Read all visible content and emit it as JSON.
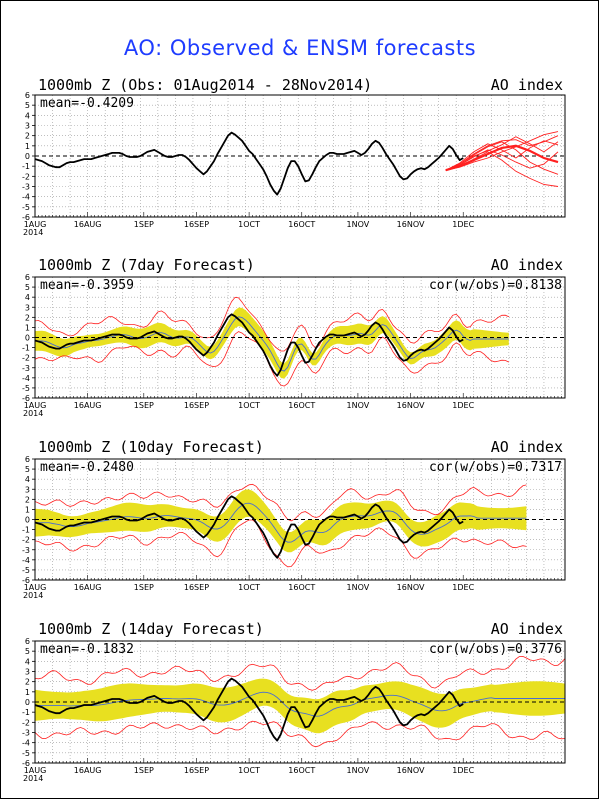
{
  "page": {
    "title": "AO: Observed & ENSM forecasts"
  },
  "colors": {
    "title": "#1e3cff",
    "observed": "#000000",
    "forecast_members": "#ff2020",
    "ensemble_spread": "#e8e020",
    "ensemble_mean": "#4a6ecf",
    "zero_line": "#000000",
    "grid": "#999999"
  },
  "chart_data": [
    {
      "type": "line",
      "title": "1000mb Z (Obs: 01Aug2014 - 28Nov2014)",
      "index_label": "AO index",
      "stat_label": "mean=-0.4209",
      "corr_label": "",
      "ylim": [
        -6,
        6
      ],
      "yticks": [
        "6",
        "5",
        "4",
        "3",
        "2",
        "1",
        "0",
        "-1",
        "-2",
        "-3",
        "-4",
        "-5",
        "-6"
      ],
      "xlabels": [
        "1AUG",
        "16AUG",
        "1SEP",
        "16SEP",
        "1OCT",
        "16OCT",
        "1NOV",
        "16NOV",
        "1DEC"
      ],
      "xlabel_year": "2014",
      "x_days_total": 151,
      "xtick_days": [
        0,
        15,
        31,
        46,
        61,
        76,
        92,
        107,
        122
      ],
      "observed": {
        "start_day": 0,
        "values": [
          -0.3,
          -0.4,
          -0.5,
          -0.7,
          -0.9,
          -1.0,
          -1.1,
          -1.1,
          -0.9,
          -0.7,
          -0.6,
          -0.6,
          -0.5,
          -0.4,
          -0.3,
          -0.3,
          -0.3,
          -0.2,
          -0.1,
          0.0,
          0.1,
          0.2,
          0.3,
          0.3,
          0.3,
          0.2,
          0.0,
          -0.1,
          -0.1,
          -0.1,
          0.0,
          0.2,
          0.4,
          0.5,
          0.6,
          0.4,
          0.2,
          0.0,
          -0.1,
          -0.1,
          0.0,
          0.1,
          0.1,
          -0.1,
          -0.4,
          -0.8,
          -1.2,
          -1.5,
          -1.8,
          -1.5,
          -1.0,
          -0.5,
          0.2,
          0.8,
          1.4,
          2.0,
          2.3,
          2.1,
          1.8,
          1.5,
          1.0,
          0.5,
          0.2,
          -0.3,
          -0.8,
          -1.3,
          -2.0,
          -2.8,
          -3.4,
          -3.8,
          -3.2,
          -2.2,
          -1.2,
          -0.5,
          -0.5,
          -1.0,
          -1.8,
          -2.5,
          -2.4,
          -1.8,
          -1.1,
          -0.5,
          -0.2,
          0.1,
          0.3,
          0.3,
          0.2,
          0.2,
          0.2,
          0.3,
          0.4,
          0.5,
          0.3,
          0.1,
          0.3,
          0.7,
          1.2,
          1.5,
          1.3,
          0.8,
          0.2,
          -0.3,
          -0.8,
          -1.4,
          -2.0,
          -2.3,
          -2.2,
          -1.8,
          -1.5,
          -1.3,
          -1.2,
          -1.3,
          -1.1,
          -0.8,
          -0.5,
          -0.2,
          0.2,
          0.6,
          1.0,
          0.7,
          0.1,
          -0.4,
          -0.2
        ]
      },
      "forecast_members": [
        {
          "start_day": 117,
          "values": [
            -1.4,
            -1.0,
            -0.4,
            0.2,
            0.8,
            1.0,
            0.5,
            -0.2,
            -0.6
          ]
        },
        {
          "start_day": 117,
          "values": [
            -1.4,
            -0.8,
            0.2,
            1.0,
            1.5,
            1.6,
            1.0,
            1.4,
            2.0
          ]
        },
        {
          "start_day": 117,
          "values": [
            -1.4,
            -0.9,
            -0.1,
            0.6,
            0.1,
            -0.6,
            -1.2,
            -0.8,
            0.4
          ]
        },
        {
          "start_day": 117,
          "values": [
            -1.4,
            -0.7,
            0.4,
            1.2,
            0.6,
            -0.2,
            0.8,
            1.5,
            1.1
          ]
        },
        {
          "start_day": 117,
          "values": [
            -1.4,
            -1.1,
            -0.6,
            -0.2,
            0.4,
            0.9,
            1.5,
            2.1,
            2.4
          ]
        },
        {
          "start_day": 117,
          "values": [
            -1.4,
            -1.0,
            -0.3,
            0.4,
            -0.4,
            -1.5,
            -2.2,
            -2.8,
            -3.0
          ]
        },
        {
          "start_day": 117,
          "values": [
            -1.4,
            -0.8,
            0.1,
            0.9,
            1.4,
            0.6,
            -0.6,
            -1.3,
            -1.8
          ]
        },
        {
          "start_day": 117,
          "values": [
            -1.4,
            -0.9,
            0.0,
            0.5,
            1.1,
            1.9,
            1.2,
            0.4,
            1.4
          ]
        }
      ],
      "ensemble": null
    },
    {
      "type": "line",
      "title": "1000mb Z (7day Forecast)",
      "index_label": "AO index",
      "stat_label": "mean=-0.3959",
      "corr_label": "cor(w/obs)=0.8138",
      "ylim": [
        -6,
        6
      ],
      "yticks": [
        "6",
        "5",
        "4",
        "3",
        "2",
        "1",
        "0",
        "-1",
        "-2",
        "-3",
        "-4",
        "-5",
        "-6"
      ],
      "xlabels": [
        "1AUG",
        "16AUG",
        "1SEP",
        "16SEP",
        "1OCT",
        "16OCT",
        "1NOV",
        "16NOV",
        "1DEC"
      ],
      "xlabel_year": "2014",
      "x_days_total": 151,
      "xtick_days": [
        0,
        15,
        31,
        46,
        61,
        76,
        92,
        107,
        122
      ],
      "observed": {
        "start_day": 0,
        "values": [
          -0.3,
          -0.4,
          -0.5,
          -0.7,
          -0.9,
          -1.0,
          -1.1,
          -1.1,
          -0.9,
          -0.7,
          -0.6,
          -0.6,
          -0.5,
          -0.4,
          -0.3,
          -0.3,
          -0.3,
          -0.2,
          -0.1,
          0.0,
          0.1,
          0.2,
          0.3,
          0.3,
          0.3,
          0.2,
          0.0,
          -0.1,
          -0.1,
          -0.1,
          0.0,
          0.2,
          0.4,
          0.5,
          0.6,
          0.4,
          0.2,
          0.0,
          -0.1,
          -0.1,
          0.0,
          0.1,
          0.1,
          -0.1,
          -0.4,
          -0.8,
          -1.2,
          -1.5,
          -1.8,
          -1.5,
          -1.0,
          -0.5,
          0.2,
          0.8,
          1.4,
          2.0,
          2.3,
          2.1,
          1.8,
          1.5,
          1.0,
          0.5,
          0.2,
          -0.3,
          -0.8,
          -1.3,
          -2.0,
          -2.8,
          -3.4,
          -3.8,
          -3.2,
          -2.2,
          -1.2,
          -0.5,
          -0.5,
          -1.0,
          -1.8,
          -2.5,
          -2.4,
          -1.8,
          -1.1,
          -0.5,
          -0.2,
          0.1,
          0.3,
          0.3,
          0.2,
          0.2,
          0.2,
          0.3,
          0.4,
          0.5,
          0.3,
          0.1,
          0.3,
          0.7,
          1.2,
          1.5,
          1.3,
          0.8,
          0.2,
          -0.3,
          -0.8,
          -1.4,
          -2.0,
          -2.3,
          -2.2,
          -1.8,
          -1.5,
          -1.3,
          -1.2,
          -1.3,
          -1.1,
          -0.8,
          -0.5,
          -0.2,
          0.2,
          0.6,
          1.0,
          0.7,
          0.1,
          -0.4,
          -0.2
        ]
      },
      "forecast_members": [],
      "ensemble": {
        "start_day": 0,
        "lag_days": 2,
        "smoothing": 1,
        "shift": 0.0,
        "spread": [
          0.6,
          1.0
        ],
        "envelope": [
          1.2,
          1.8
        ],
        "extend_to_day": 135
      }
    },
    {
      "type": "line",
      "title": "1000mb Z (10day Forecast)",
      "index_label": "AO index",
      "stat_label": "mean=-0.2480",
      "corr_label": "cor(w/obs)=0.7317",
      "ylim": [
        -6,
        6
      ],
      "yticks": [
        "6",
        "5",
        "4",
        "3",
        "2",
        "1",
        "0",
        "-1",
        "-2",
        "-3",
        "-4",
        "-5",
        "-6"
      ],
      "xlabels": [
        "1AUG",
        "16AUG",
        "1SEP",
        "16SEP",
        "1OCT",
        "16OCT",
        "1NOV",
        "16NOV",
        "1DEC"
      ],
      "xlabel_year": "2014",
      "x_days_total": 151,
      "xtick_days": [
        0,
        15,
        31,
        46,
        61,
        76,
        92,
        107,
        122
      ],
      "observed": {
        "start_day": 0,
        "values": [
          -0.3,
          -0.4,
          -0.5,
          -0.7,
          -0.9,
          -1.0,
          -1.1,
          -1.1,
          -0.9,
          -0.7,
          -0.6,
          -0.6,
          -0.5,
          -0.4,
          -0.3,
          -0.3,
          -0.3,
          -0.2,
          -0.1,
          0.0,
          0.1,
          0.2,
          0.3,
          0.3,
          0.3,
          0.2,
          0.0,
          -0.1,
          -0.1,
          -0.1,
          0.0,
          0.2,
          0.4,
          0.5,
          0.6,
          0.4,
          0.2,
          0.0,
          -0.1,
          -0.1,
          0.0,
          0.1,
          0.1,
          -0.1,
          -0.4,
          -0.8,
          -1.2,
          -1.5,
          -1.8,
          -1.5,
          -1.0,
          -0.5,
          0.2,
          0.8,
          1.4,
          2.0,
          2.3,
          2.1,
          1.8,
          1.5,
          1.0,
          0.5,
          0.2,
          -0.3,
          -0.8,
          -1.3,
          -2.0,
          -2.8,
          -3.4,
          -3.8,
          -3.2,
          -2.2,
          -1.2,
          -0.5,
          -0.5,
          -1.0,
          -1.8,
          -2.5,
          -2.4,
          -1.8,
          -1.1,
          -0.5,
          -0.2,
          0.1,
          0.3,
          0.3,
          0.2,
          0.2,
          0.2,
          0.3,
          0.4,
          0.5,
          0.3,
          0.1,
          0.3,
          0.7,
          1.2,
          1.5,
          1.3,
          0.8,
          0.2,
          -0.3,
          -0.8,
          -1.4,
          -2.0,
          -2.3,
          -2.2,
          -1.8,
          -1.5,
          -1.3,
          -1.2,
          -1.3,
          -1.1,
          -0.8,
          -0.5,
          -0.2,
          0.2,
          0.6,
          1.0,
          0.7,
          0.1,
          -0.4,
          -0.2
        ]
      },
      "forecast_members": [],
      "ensemble": {
        "start_day": 0,
        "lag_days": 4,
        "smoothing": 3,
        "shift": 0.1,
        "spread": [
          1.0,
          1.4
        ],
        "envelope": [
          1.8,
          2.4
        ],
        "extend_to_day": 140
      }
    },
    {
      "type": "line",
      "title": "1000mb Z (14day Forecast)",
      "index_label": "AO index",
      "stat_label": "mean=-0.1832",
      "corr_label": "cor(w/obs)=0.3776",
      "ylim": [
        -6,
        6
      ],
      "yticks": [
        "6",
        "5",
        "4",
        "3",
        "2",
        "1",
        "0",
        "-1",
        "-2",
        "-3",
        "-4",
        "-5",
        "-6"
      ],
      "xlabels": [
        "1AUG",
        "16AUG",
        "1SEP",
        "16SEP",
        "1OCT",
        "16OCT",
        "1NOV",
        "16NOV",
        "1DEC"
      ],
      "xlabel_year": "2014",
      "x_days_total": 151,
      "xtick_days": [
        0,
        15,
        31,
        46,
        61,
        76,
        92,
        107,
        122
      ],
      "observed": {
        "start_day": 0,
        "values": [
          -0.3,
          -0.4,
          -0.5,
          -0.7,
          -0.9,
          -1.0,
          -1.1,
          -1.1,
          -0.9,
          -0.7,
          -0.6,
          -0.6,
          -0.5,
          -0.4,
          -0.3,
          -0.3,
          -0.3,
          -0.2,
          -0.1,
          0.0,
          0.1,
          0.2,
          0.3,
          0.3,
          0.3,
          0.2,
          0.0,
          -0.1,
          -0.1,
          -0.1,
          0.0,
          0.2,
          0.4,
          0.5,
          0.6,
          0.4,
          0.2,
          0.0,
          -0.1,
          -0.1,
          0.0,
          0.1,
          0.1,
          -0.1,
          -0.4,
          -0.8,
          -1.2,
          -1.5,
          -1.8,
          -1.5,
          -1.0,
          -0.5,
          0.2,
          0.8,
          1.4,
          2.0,
          2.3,
          2.1,
          1.8,
          1.5,
          1.0,
          0.5,
          0.2,
          -0.3,
          -0.8,
          -1.3,
          -2.0,
          -2.8,
          -3.4,
          -3.8,
          -3.2,
          -2.2,
          -1.2,
          -0.5,
          -0.5,
          -1.0,
          -1.8,
          -2.5,
          -2.4,
          -1.8,
          -1.1,
          -0.5,
          -0.2,
          0.1,
          0.3,
          0.3,
          0.2,
          0.2,
          0.2,
          0.3,
          0.4,
          0.5,
          0.3,
          0.1,
          0.3,
          0.7,
          1.2,
          1.5,
          1.3,
          0.8,
          0.2,
          -0.3,
          -0.8,
          -1.4,
          -2.0,
          -2.3,
          -2.2,
          -1.8,
          -1.5,
          -1.3,
          -1.2,
          -1.3,
          -1.1,
          -0.8,
          -0.5,
          -0.2,
          0.2,
          0.6,
          1.0,
          0.7,
          0.1,
          -0.4,
          -0.2
        ]
      },
      "forecast_members": [],
      "ensemble": {
        "start_day": 0,
        "lag_days": 8,
        "smoothing": 6,
        "shift": 0.2,
        "spread": [
          1.3,
          1.7
        ],
        "envelope": [
          2.4,
          3.0
        ],
        "extend_to_day": 151
      }
    }
  ]
}
